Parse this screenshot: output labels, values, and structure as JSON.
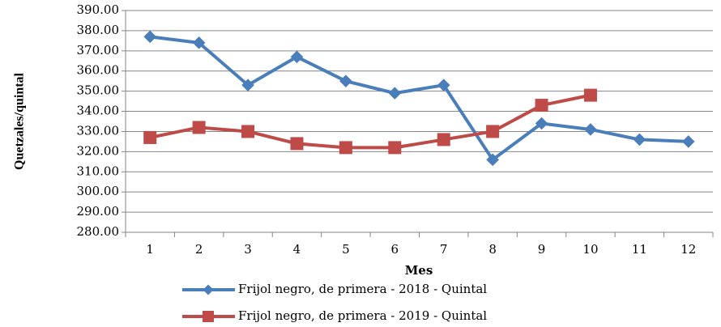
{
  "chart_data": {
    "type": "line",
    "x_label": "Mes",
    "y_label": "Quetzales/quintal",
    "categories": [
      "1",
      "2",
      "3",
      "4",
      "5",
      "6",
      "7",
      "8",
      "9",
      "10",
      "11",
      "12"
    ],
    "series": [
      {
        "name": "Frijol negro, de primera - 2018 - Quintal",
        "color": "#4a7ebb",
        "marker": "diamond",
        "values": [
          377,
          374,
          353,
          367,
          355,
          349,
          353,
          316,
          334,
          331,
          326,
          325
        ]
      },
      {
        "name": "Frijol negro, de primera - 2019 - Quintal",
        "color": "#be4b48",
        "marker": "square",
        "values": [
          327,
          332,
          330,
          324,
          322,
          322,
          326,
          330,
          343,
          348,
          null,
          null
        ]
      }
    ],
    "ylim": [
      280,
      390
    ],
    "yticks": [
      {
        "value": 280,
        "label": "280.00"
      },
      {
        "value": 290,
        "label": "290.00"
      },
      {
        "value": 300,
        "label": "300.00"
      },
      {
        "value": 310,
        "label": "310.00"
      },
      {
        "value": 320,
        "label": "320.00"
      },
      {
        "value": 330,
        "label": "330.00"
      },
      {
        "value": 340,
        "label": "340.00"
      },
      {
        "value": 350,
        "label": "350.00"
      },
      {
        "value": 360,
        "label": "360.00"
      },
      {
        "value": 370,
        "label": "370.00"
      },
      {
        "value": 380,
        "label": "380.00"
      },
      {
        "value": 390,
        "label": "390.00"
      }
    ],
    "grid": true
  }
}
